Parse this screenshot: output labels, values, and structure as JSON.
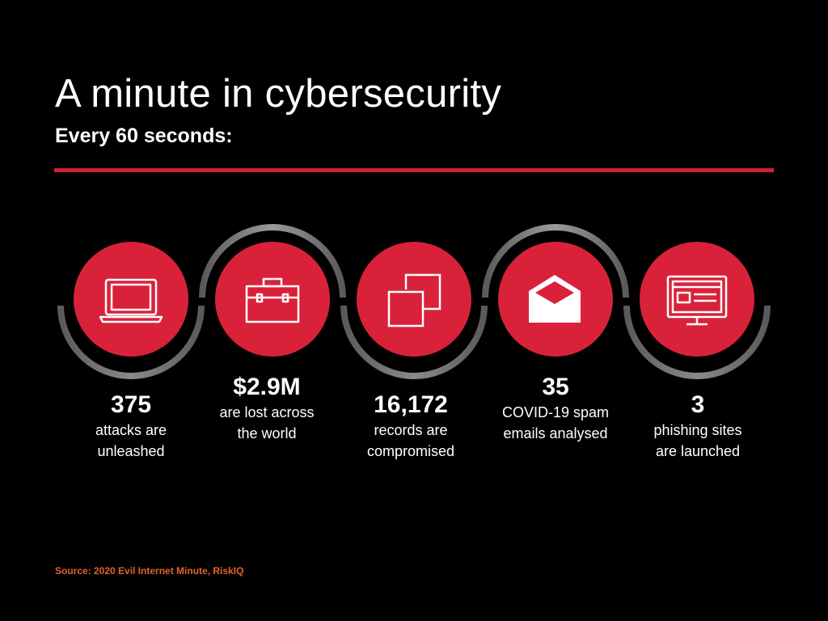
{
  "header": {
    "title": "A minute in cybersecurity",
    "subtitle": "Every 60 seconds:"
  },
  "stats": [
    {
      "value": "375",
      "line1": "attacks are",
      "line2": "unleashed",
      "icon": "laptop-icon"
    },
    {
      "value": "$2.9M",
      "line1": "are lost across",
      "line2": "the world",
      "icon": "briefcase-icon"
    },
    {
      "value": "16,172",
      "line1": "records are",
      "line2": "compromised",
      "icon": "copy-icon"
    },
    {
      "value": "35",
      "line1": "COVID-19 spam",
      "line2": "emails analysed",
      "icon": "envelope-icon"
    },
    {
      "value": "3",
      "line1": "phishing sites",
      "line2": "are launched",
      "icon": "monitor-icon"
    }
  ],
  "source": "Source: 2020 Evil Internet Minute, RiskIQ",
  "colors": {
    "background": "#000000",
    "accent_red": "#d9223a",
    "rule_red": "#cf1f36",
    "arc_gray": "#7a7a7a",
    "source_orange": "#e2622f",
    "text": "#ffffff"
  }
}
